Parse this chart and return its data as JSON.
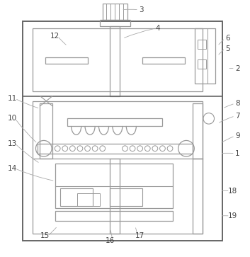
{
  "lc": "#999999",
  "dc": "#666666",
  "tc": "#444444",
  "label_color": "#444444",
  "fontsize": 7.5,
  "labels_info": [
    [
      "3",
      56.5,
      97.5,
      48.5,
      97.5
    ],
    [
      "4",
      63,
      90,
      49,
      86
    ],
    [
      "12",
      22,
      87,
      27,
      83
    ],
    [
      "6",
      91,
      86,
      87,
      83
    ],
    [
      "5",
      91,
      82,
      87,
      79
    ],
    [
      "2",
      95,
      74,
      91,
      74
    ],
    [
      "8",
      95,
      60,
      89,
      58
    ],
    [
      "7",
      95,
      55,
      87,
      52
    ],
    [
      "9",
      95,
      47,
      88,
      44
    ],
    [
      "1",
      95,
      40,
      88,
      40
    ],
    [
      "11",
      5,
      62,
      16,
      58
    ],
    [
      "10",
      5,
      54,
      15,
      44
    ],
    [
      "13",
      5,
      44,
      16,
      36
    ],
    [
      "14",
      5,
      34,
      22,
      29
    ],
    [
      "15",
      18,
      7,
      23,
      11
    ],
    [
      "16",
      44,
      5,
      44,
      10
    ],
    [
      "17",
      56,
      7,
      54,
      11
    ],
    [
      "18",
      93,
      25,
      88,
      25
    ],
    [
      "19",
      93,
      15,
      88,
      15
    ]
  ]
}
